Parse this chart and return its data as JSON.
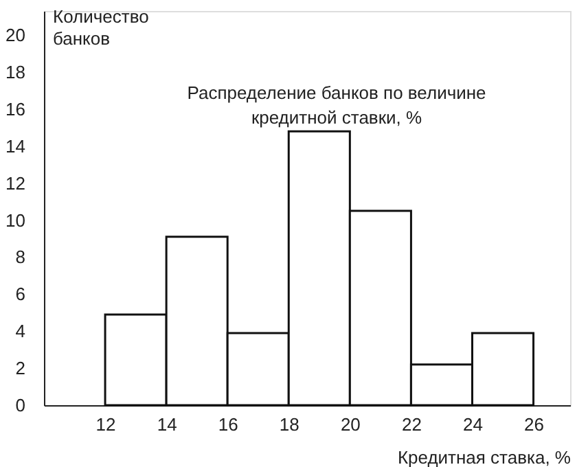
{
  "chart_data": {
    "type": "histogram",
    "title": "Распределение банков по величине\nкредитной ставки, %",
    "xlabel": "Кредитная ставка, %",
    "ylabel": "Количество\nбанков",
    "bins": [
      12,
      14,
      16,
      18,
      20,
      22,
      24,
      26
    ],
    "values": [
      4.9,
      9.1,
      3.9,
      14.8,
      10.5,
      2.2,
      3.9
    ],
    "color": "#ffffff",
    "xlim": [
      10,
      27.2
    ],
    "xticks": [
      12,
      14,
      16,
      18,
      20,
      22,
      24,
      26
    ],
    "ylim": [
      0,
      21.3
    ],
    "yticks": [
      0,
      2,
      4,
      6,
      8,
      10,
      12,
      14,
      16,
      18,
      20
    ],
    "grid": false
  }
}
